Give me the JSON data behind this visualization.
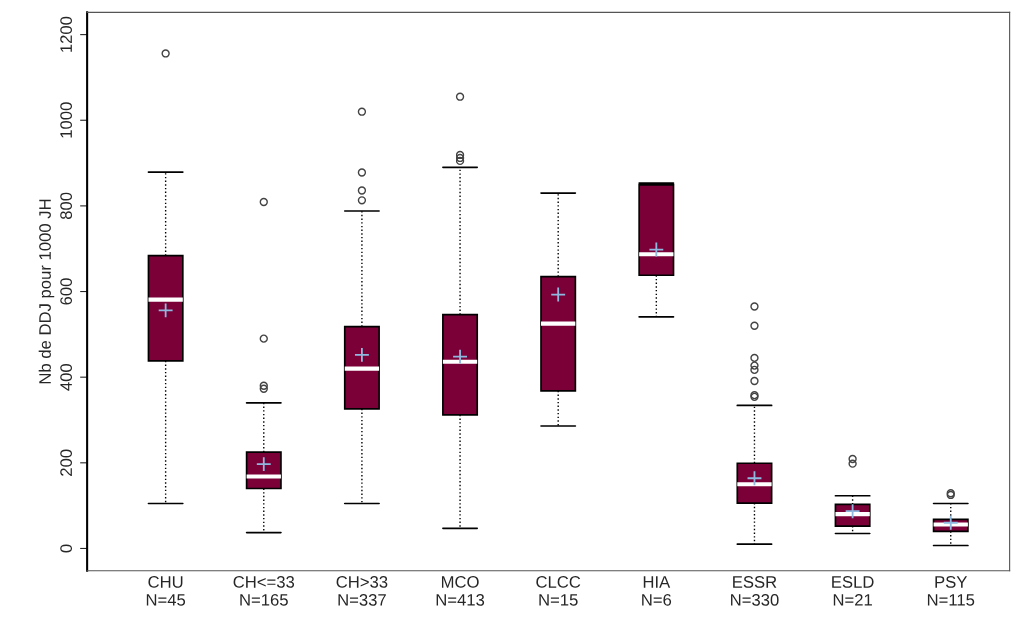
{
  "chart_data": {
    "type": "box",
    "ylabel": "Nb de DDJ pour 1000 JH",
    "categories": [
      "CHU\nN=45",
      "CH<=33\nN=165",
      "CH>33\nN=337",
      "MCO\nN=413",
      "CLCC\nN=15",
      "HIA\nN=6",
      "ESSR\nN=330",
      "ESLD\nN=21",
      "PSY\nN=115"
    ],
    "series": [
      {
        "color": "#7b0038",
        "boxes": [
          {
            "low": 105,
            "q1": 438,
            "median": 581,
            "q3": 684,
            "high": 879,
            "mean": 556,
            "outliers": [
              1156
            ]
          },
          {
            "low": 37,
            "q1": 140,
            "median": 168,
            "q3": 225,
            "high": 340,
            "mean": 197,
            "outliers": [
              809,
              490,
              380,
              373
            ]
          },
          {
            "low": 105,
            "q1": 326,
            "median": 420,
            "q3": 518,
            "high": 788,
            "mean": 452,
            "outliers": [
              1020,
              878,
              836,
              813
            ]
          },
          {
            "low": 47,
            "q1": 312,
            "median": 436,
            "q3": 546,
            "high": 890,
            "mean": 448,
            "outliers": [
              1055,
              919,
              912,
              905
            ]
          },
          {
            "low": 286,
            "q1": 368,
            "median": 525,
            "q3": 635,
            "high": 830,
            "mean": 593
          },
          {
            "low": 541,
            "q1": 638,
            "median": 687,
            "q3": 849,
            "high": 853,
            "mean": 698
          },
          {
            "low": 10,
            "q1": 106,
            "median": 150,
            "q3": 199,
            "high": 334,
            "mean": 164,
            "outliers": [
              565,
              520,
              445,
              427,
              417,
              391,
              358,
              354
            ]
          },
          {
            "low": 35,
            "q1": 52,
            "median": 80,
            "q3": 103,
            "high": 123,
            "mean": 87,
            "outliers": [
              209,
              198
            ]
          },
          {
            "low": 7,
            "q1": 40,
            "median": 56,
            "q3": 68,
            "high": 105,
            "mean": 60,
            "outliers": [
              129,
              125
            ]
          }
        ]
      }
    ],
    "ylim": [
      -52,
      1252
    ],
    "yticks": [
      0,
      200,
      400,
      600,
      800,
      1000,
      1200
    ],
    "grid": false
  }
}
